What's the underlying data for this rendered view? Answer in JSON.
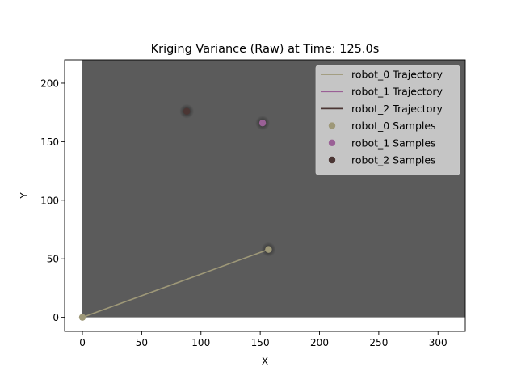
{
  "chart_data": {
    "type": "scatter",
    "title": "Kriging Variance (Raw) at Time: 125.0s",
    "xlabel": "X",
    "ylabel": "Y",
    "xlim": [
      -15,
      323
    ],
    "ylim": [
      -12,
      220
    ],
    "xticks": [
      0,
      50,
      100,
      150,
      200,
      250,
      300
    ],
    "yticks": [
      0,
      50,
      100,
      150,
      200
    ],
    "heatmap": {
      "x_range": [
        0,
        323
      ],
      "y_range": [
        0,
        220
      ],
      "color": "#5b5b5b"
    },
    "legend_position": "top-right",
    "series": [
      {
        "name": "robot_0 Trajectory",
        "kind": "line",
        "color": "#9e9878",
        "points": [
          [
            0,
            0
          ],
          [
            157,
            58
          ]
        ]
      },
      {
        "name": "robot_1 Trajectory",
        "kind": "line",
        "color": "#9a6096",
        "points": [
          [
            152,
            166
          ]
        ]
      },
      {
        "name": "robot_2 Trajectory",
        "kind": "line",
        "color": "#4b3634",
        "points": [
          [
            88,
            176
          ]
        ]
      },
      {
        "name": "robot_0 Samples",
        "kind": "scatter",
        "color": "#9e9878",
        "points": [
          [
            0,
            0
          ],
          [
            157,
            58
          ]
        ]
      },
      {
        "name": "robot_1 Samples",
        "kind": "scatter",
        "color": "#9a6096",
        "points": [
          [
            152,
            166
          ]
        ]
      },
      {
        "name": "robot_2 Samples",
        "kind": "scatter",
        "color": "#4b3634",
        "points": [
          [
            88,
            176
          ]
        ]
      }
    ]
  }
}
